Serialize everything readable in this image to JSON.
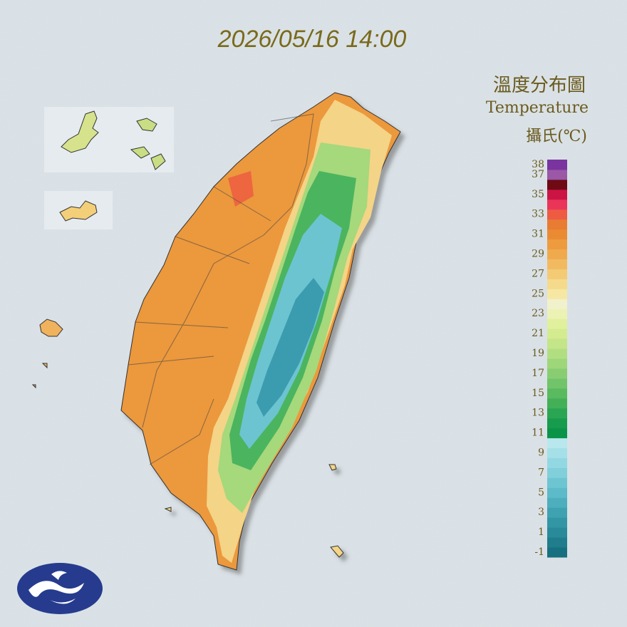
{
  "timestamp": "2026/05/16 14:00",
  "legend": {
    "title": "溫度分布圖",
    "subtitle": "Temperature",
    "unit": "攝氏(℃)",
    "ticks": [
      38,
      37,
      35,
      33,
      31,
      29,
      27,
      25,
      23,
      21,
      19,
      17,
      15,
      13,
      11,
      9,
      7,
      5,
      3,
      1,
      -1
    ],
    "lim": [
      -1,
      39
    ],
    "colors": [
      "#17707f",
      "#1f7d8c",
      "#298a99",
      "#3396a5",
      "#3fa2b1",
      "#4daebd",
      "#5dbac8",
      "#6ec5d2",
      "#80cfda",
      "#92d8e2",
      "#a5e0e8",
      "#b8e8ee",
      "#0a9448",
      "#179c4e",
      "#2aa652",
      "#43b058",
      "#5aba60",
      "#72c46a",
      "#89cd72",
      "#9ed67a",
      "#b2de82",
      "#c4e588",
      "#d4eb90",
      "#e1f09c",
      "#ebf2b4",
      "#f1f1cc",
      "#f6e7a2",
      "#f5da8c",
      "#f4ca74",
      "#f2ba60",
      "#f0aa4e",
      "#ee9b40",
      "#ea8b34",
      "#e87c32",
      "#ee5a42",
      "#ea3558",
      "#cc1444",
      "#6e0a14",
      "#9a58a6",
      "#7a34a0"
    ]
  }
}
